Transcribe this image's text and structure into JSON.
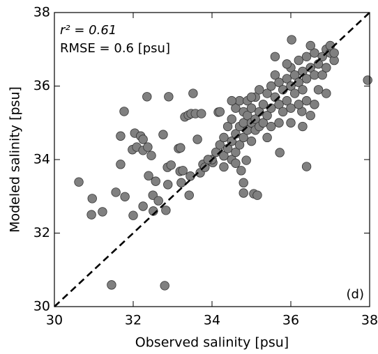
{
  "chart_data": {
    "type": "scatter",
    "xlabel": "Observed salinity [psu]",
    "ylabel": "Modeled salinity [psu]",
    "annotations": [
      "r² = 0.61",
      "RMSE = 0.6 [psu]"
    ],
    "panel_label": "(d)",
    "color": "#808080",
    "identity_line": true,
    "xlim": [
      30,
      38
    ],
    "ylim": [
      30,
      38
    ],
    "xticks": [
      30,
      32,
      34,
      36,
      38
    ],
    "yticks": [
      30,
      32,
      34,
      36,
      38
    ],
    "x": [
      30.62,
      30.96,
      30.94,
      31.22,
      31.45,
      31.56,
      31.77,
      31.68,
      31.68,
      31.79,
      32.0,
      32.04,
      31.98,
      32.09,
      32.19,
      32.25,
      32.25,
      32.25,
      32.35,
      32.37,
      32.39,
      32.46,
      32.5,
      32.51,
      32.57,
      32.64,
      32.76,
      32.8,
      32.83,
      32.87,
      32.9,
      32.88,
      32.96,
      33.15,
      33.19,
      33.22,
      33.2,
      33.26,
      33.31,
      33.4,
      33.47,
      33.52,
      33.58,
      33.45,
      33.42,
      33.63,
      33.7,
      33.73,
      33.77,
      33.82,
      34.02,
      34.16,
      34.74,
      34.8,
      34.8,
      34.87,
      35.06,
      35.15,
      35.72,
      36.4,
      36.02,
      37.95,
      36.28,
      34.0,
      34.1,
      34.2,
      34.3,
      34.3,
      34.4,
      34.4,
      34.5,
      34.5,
      34.5,
      34.6,
      34.6,
      34.6,
      34.7,
      34.7,
      34.7,
      34.8,
      34.8,
      34.8,
      34.9,
      34.9,
      34.9,
      35.0,
      35.0,
      35.0,
      35.1,
      35.1,
      35.1,
      35.2,
      35.2,
      35.2,
      35.3,
      35.3,
      35.4,
      35.4,
      35.5,
      35.5,
      35.5,
      35.6,
      35.6,
      35.7,
      35.7,
      35.8,
      35.8,
      35.9,
      35.9,
      36.0,
      36.0,
      36.0,
      36.1,
      36.1,
      36.2,
      36.2,
      36.2,
      36.3,
      36.3,
      36.4,
      36.4,
      36.4,
      36.5,
      36.5,
      36.6,
      36.6,
      36.7,
      36.7,
      36.8,
      36.8,
      36.9,
      36.9,
      37.0,
      37.0,
      37.1,
      37.1,
      36.3,
      36.0,
      35.7,
      35.4,
      34.5,
      34.2,
      35.0,
      36.5,
      34.6,
      34.3,
      33.9,
      35.6,
      35.9,
      36.6,
      36.9
    ],
    "values": [
      33.39,
      32.94,
      32.5,
      32.58,
      30.59,
      33.11,
      35.31,
      34.64,
      33.87,
      32.99,
      32.48,
      34.72,
      34.27,
      34.34,
      34.64,
      34.55,
      32.73,
      34.25,
      35.71,
      34.34,
      33.56,
      34.11,
      33.03,
      32.6,
      33.41,
      32.88,
      34.68,
      30.57,
      32.62,
      33.79,
      35.71,
      33.32,
      33.85,
      34.3,
      33.68,
      33.37,
      34.32,
      33.7,
      35.16,
      35.21,
      35.25,
      35.8,
      35.25,
      33.55,
      33.03,
      34.55,
      33.64,
      35.25,
      33.87,
      33.79,
      33.92,
      35.29,
      33.7,
      33.37,
      33.09,
      33.98,
      33.07,
      33.03,
      34.19,
      33.81,
      37.26,
      36.16,
      35.31,
      34.0,
      34.2,
      34.4,
      34.1,
      34.6,
      34.3,
      34.9,
      34.5,
      35.1,
      34.0,
      34.7,
      35.4,
      34.2,
      34.9,
      35.6,
      34.4,
      35.0,
      35.3,
      34.6,
      34.8,
      35.2,
      35.6,
      35.0,
      34.5,
      35.4,
      35.1,
      34.8,
      35.7,
      35.3,
      34.9,
      35.9,
      35.5,
      35.0,
      35.8,
      35.2,
      35.4,
      36.0,
      34.9,
      35.7,
      36.3,
      35.5,
      36.1,
      35.9,
      35.3,
      36.2,
      35.6,
      36.0,
      36.5,
      35.4,
      35.8,
      36.3,
      36.1,
      35.5,
      36.7,
      36.4,
      35.9,
      36.2,
      36.8,
      35.6,
      36.5,
      35.2,
      36.9,
      36.3,
      36.6,
      35.9,
      36.8,
      36.3,
      37.0,
      36.5,
      36.9,
      37.1,
      36.7,
      36.9,
      34.9,
      35.0,
      35.0,
      34.6,
      35.6,
      35.3,
      35.7,
      37.1,
      33.9,
      33.8,
      34.0,
      36.8,
      36.6,
      35.5,
      35.8
    ]
  }
}
